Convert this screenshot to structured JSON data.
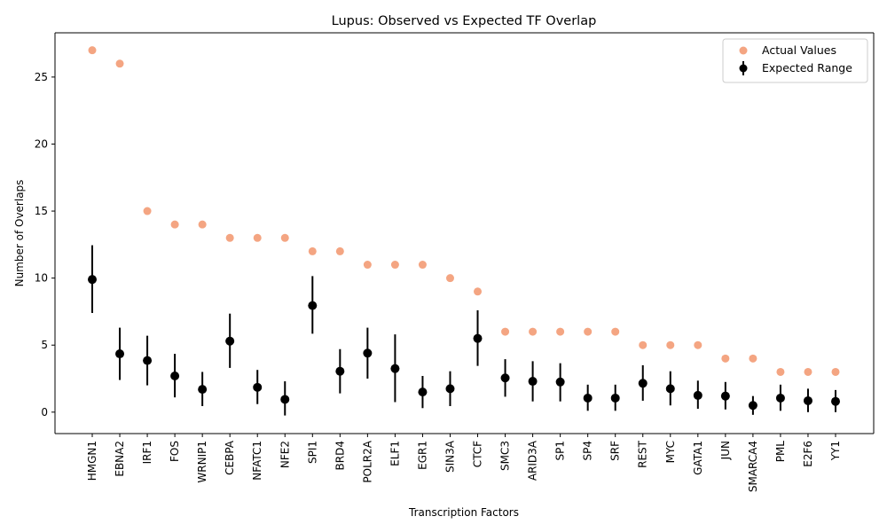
{
  "chart_data": {
    "type": "scatter",
    "title": "Lupus: Observed vs Expected TF Overlap",
    "xlabel": "Transcription Factors",
    "ylabel": "Number of Overlaps",
    "ylim": [
      -1.6,
      28.3
    ],
    "yticks": [
      0,
      5,
      10,
      15,
      20,
      25
    ],
    "grid": false,
    "legend_position": "top-right",
    "categories": [
      "HMGN1",
      "EBNA2",
      "IRF1",
      "FOS",
      "WRNIP1",
      "CEBPA",
      "NFATC1",
      "NFE2",
      "SPI1",
      "BRD4",
      "POLR2A",
      "ELF1",
      "EGR1",
      "SIN3A",
      "CTCF",
      "SMC3",
      "ARID3A",
      "SP1",
      "SP4",
      "SRF",
      "REST",
      "MYC",
      "GATA1",
      "JUN",
      "SMARCA4",
      "PML",
      "E2F6",
      "YY1"
    ],
    "series": [
      {
        "name": "Actual Values",
        "color": "#f4a582",
        "values": [
          27,
          26,
          15,
          14,
          14,
          13,
          13,
          13,
          12,
          12,
          11,
          11,
          11,
          10,
          9,
          6,
          6,
          6,
          6,
          6,
          5,
          5,
          5,
          4,
          4,
          3,
          3,
          3
        ]
      },
      {
        "name": "Expected Range",
        "color": "#000000",
        "values": [
          9.9,
          4.35,
          3.85,
          2.7,
          1.7,
          5.3,
          1.85,
          0.95,
          7.95,
          3.05,
          4.4,
          3.25,
          1.5,
          1.75,
          5.5,
          2.55,
          2.3,
          2.25,
          1.05,
          1.05,
          2.15,
          1.75,
          1.25,
          1.2,
          0.5,
          1.05,
          0.85,
          0.8
        ],
        "error_low": [
          7.4,
          2.4,
          2.0,
          1.1,
          0.45,
          3.3,
          0.6,
          -0.25,
          5.85,
          1.4,
          2.5,
          0.75,
          0.3,
          0.45,
          3.45,
          1.15,
          0.8,
          0.8,
          0.1,
          0.1,
          0.85,
          0.5,
          0.25,
          0.2,
          -0.2,
          0.1,
          0.0,
          0.0
        ],
        "error_high": [
          12.45,
          6.3,
          5.7,
          4.35,
          3.0,
          7.35,
          3.15,
          2.3,
          10.15,
          4.7,
          6.3,
          5.8,
          2.7,
          3.05,
          7.6,
          3.95,
          3.8,
          3.65,
          2.05,
          2.05,
          3.5,
          3.05,
          2.35,
          2.25,
          1.2,
          2.05,
          1.75,
          1.65
        ]
      }
    ]
  }
}
